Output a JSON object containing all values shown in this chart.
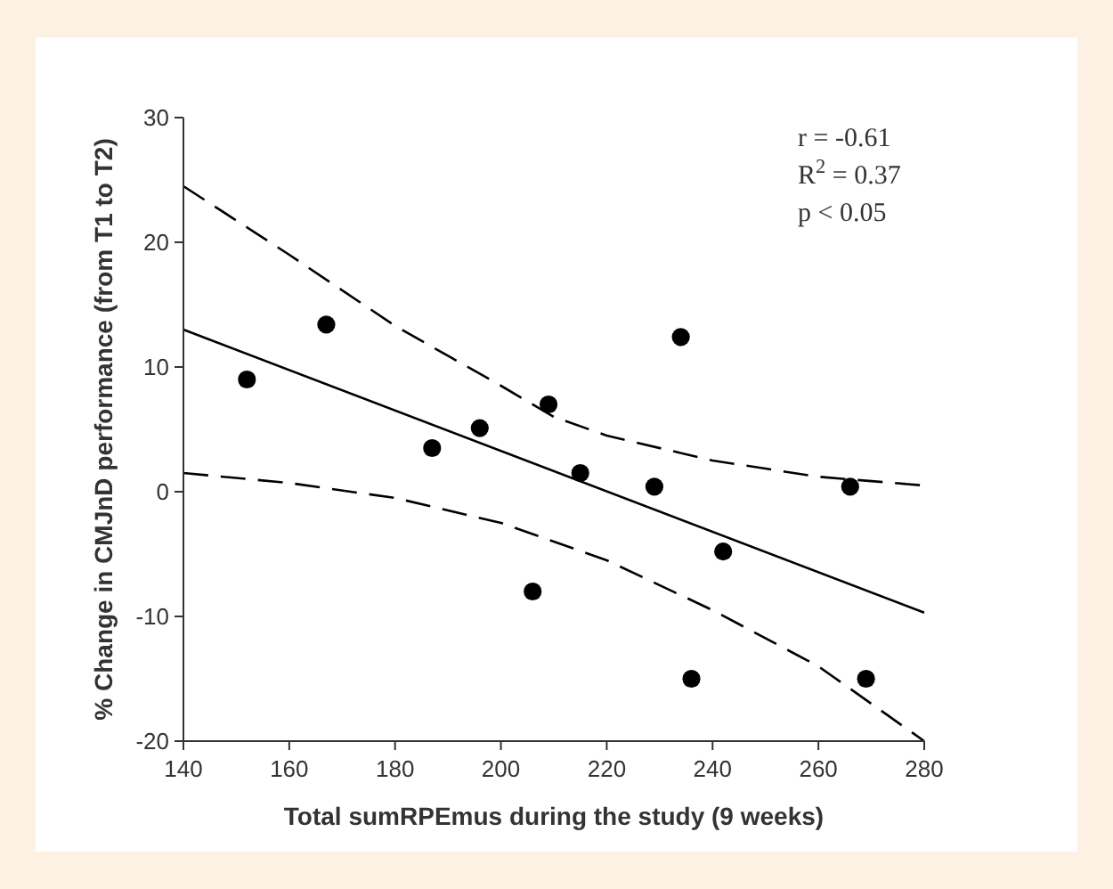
{
  "chart_data": {
    "type": "scatter",
    "xlabel": "Total sumRPEmus during the study (9 weeks)",
    "ylabel": "% Change in CMJnD performance (from T1 to T2)",
    "xlim": [
      140,
      280
    ],
    "xticks": [
      140,
      160,
      180,
      200,
      220,
      240,
      260,
      280
    ],
    "ylim": [
      -20,
      30
    ],
    "yticks": [
      -20,
      -10,
      0,
      10,
      20,
      30
    ],
    "grid": false,
    "annotations": [
      "r = -0.61",
      "R$^{2}$ = 0.37",
      "p < 0.05"
    ],
    "series": [
      {
        "color": "#000000",
        "marker": "circle",
        "x": [
          152,
          167,
          187,
          196,
          206,
          209,
          215,
          229,
          234,
          236,
          242,
          266,
          269
        ],
        "values": [
          9,
          13.4,
          3.5,
          5.1,
          -8,
          7,
          1.5,
          0.4,
          12.4,
          -15,
          -4.8,
          0.4,
          -15
        ]
      },
      {
        "type": "line",
        "color": "#000000",
        "line_style": "solid",
        "x": [
          140,
          280
        ],
        "values": [
          13,
          -9.7
        ]
      },
      {
        "type": "line",
        "color": "#000000",
        "line_style": "dashed",
        "x": [
          140,
          160,
          180,
          200,
          210,
          220,
          240,
          260,
          280
        ],
        "values": [
          24.5,
          19,
          13.3,
          8.5,
          6,
          4.5,
          2.5,
          1.2,
          0.5
        ]
      },
      {
        "type": "line",
        "color": "#000000",
        "line_style": "dashed",
        "x": [
          140,
          160,
          180,
          200,
          210,
          220,
          240,
          260,
          280
        ],
        "values": [
          1.5,
          0.7,
          -0.5,
          -2.5,
          -4,
          -5.5,
          -9.5,
          -14,
          -20
        ]
      }
    ]
  }
}
